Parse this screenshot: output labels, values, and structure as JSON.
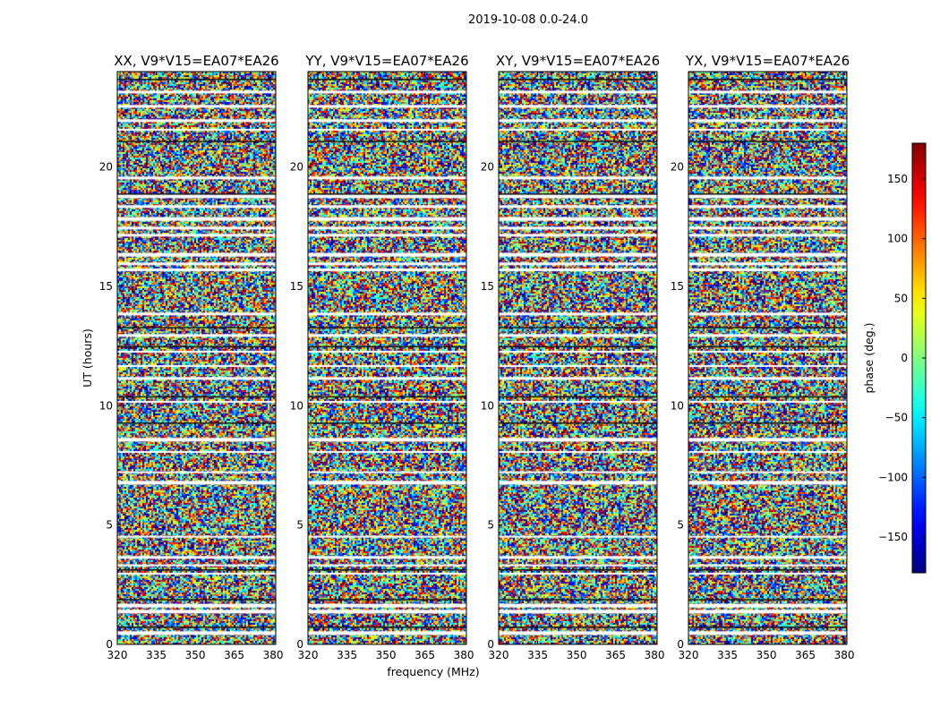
{
  "figure": {
    "suptitle": "2019-10-08 0.0-24.0",
    "xlabel": "frequency (MHz)",
    "ylabel": "UT (hours)",
    "colorbar_label": "phase (deg.)"
  },
  "chart_data": {
    "type": "heatmap",
    "colormap": "jet",
    "xlim": [
      320,
      381
    ],
    "ylim": [
      0,
      24
    ],
    "x_ticks": [
      "320",
      "335",
      "350",
      "365",
      "380"
    ],
    "y_ticks": [
      "0",
      "5",
      "10",
      "15",
      "20"
    ],
    "color_range": [
      -180,
      180
    ],
    "colorbar_ticks": [
      "150",
      "100",
      "50",
      "0",
      "−50",
      "−100",
      "−150"
    ],
    "panels": [
      {
        "title": "XX, V9*V15=EA07*EA26"
      },
      {
        "title": "YY, V9*V15=EA07*EA26"
      },
      {
        "title": "XY, V9*V15=EA07*EA26"
      },
      {
        "title": "YX, V9*V15=EA07*EA26"
      }
    ],
    "white_gaps_ut": [
      0.55,
      1.45,
      1.7,
      3.0,
      3.35,
      3.7,
      4.55,
      6.85,
      7.25,
      8.1,
      8.65,
      10.2,
      11.2,
      11.7,
      12.3,
      13.0,
      13.9,
      15.75,
      16.0,
      16.4,
      17.2,
      17.5,
      17.9,
      18.4,
      18.85,
      19.6,
      21.6,
      22.0,
      22.6,
      23.2
    ],
    "dark_rows_ut": [
      0.75,
      1.9,
      3.15,
      9.3,
      10.4,
      12.5,
      13.3,
      18.9,
      21.1,
      23.7
    ]
  }
}
